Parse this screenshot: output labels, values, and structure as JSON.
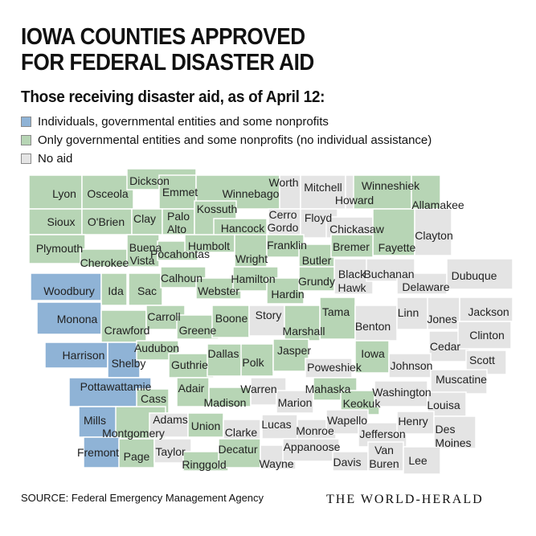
{
  "title_lines": [
    "IOWA COUNTIES APPROVED",
    "FOR FEDERAL DISASTER AID"
  ],
  "subtitle": "Those receiving disaster aid, as of April 12:",
  "legend": [
    {
      "label": "Individuals, governmental entities and some nonprofits",
      "color": "#8fb3d6"
    },
    {
      "label": "Only governmental entities and some nonprofits (no individual assistance)",
      "color": "#b7d5b5"
    },
    {
      "label": "No aid",
      "color": "#e4e4e4"
    }
  ],
  "source": "SOURCE: Federal Emergency Management Agency",
  "logo": "THE WORLD-HERALD",
  "colors": {
    "individual": "#8fb3d6",
    "government": "#b7d5b5",
    "none": "#e4e4e4",
    "border": "#ffffff"
  },
  "counties": [
    {
      "name": "Lyon",
      "status": "government"
    },
    {
      "name": "Osceola",
      "status": "government"
    },
    {
      "name": "Dickson",
      "status": "government"
    },
    {
      "name": "Emmet",
      "status": "government"
    },
    {
      "name": "Winnebago",
      "status": "government"
    },
    {
      "name": "Worth",
      "status": "none"
    },
    {
      "name": "Mitchell",
      "status": "none"
    },
    {
      "name": "Howard",
      "status": "none"
    },
    {
      "name": "Winneshiek",
      "status": "government"
    },
    {
      "name": "Allamakee",
      "status": "government"
    },
    {
      "name": "Sioux",
      "status": "government"
    },
    {
      "name": "O'Brien",
      "status": "government"
    },
    {
      "name": "Clay",
      "status": "government"
    },
    {
      "name": "Palo Alto",
      "status": "government"
    },
    {
      "name": "Kossuth",
      "status": "government"
    },
    {
      "name": "Hancock",
      "status": "government"
    },
    {
      "name": "Cerro Gordo",
      "status": "none"
    },
    {
      "name": "Floyd",
      "status": "none"
    },
    {
      "name": "Chickasaw",
      "status": "none"
    },
    {
      "name": "Fayette",
      "status": "government"
    },
    {
      "name": "Clayton",
      "status": "none"
    },
    {
      "name": "Plymouth",
      "status": "government"
    },
    {
      "name": "Cherokee",
      "status": "government"
    },
    {
      "name": "Buena Vista",
      "status": "government"
    },
    {
      "name": "Pocahontas",
      "status": "government"
    },
    {
      "name": "Humbolt",
      "status": "government"
    },
    {
      "name": "Wright",
      "status": "government"
    },
    {
      "name": "Franklin",
      "status": "government"
    },
    {
      "name": "Butler",
      "status": "government"
    },
    {
      "name": "Bremer",
      "status": "government"
    },
    {
      "name": "Black Hawk",
      "status": "none"
    },
    {
      "name": "Buchanan",
      "status": "none"
    },
    {
      "name": "Delaware",
      "status": "none"
    },
    {
      "name": "Dubuque",
      "status": "none"
    },
    {
      "name": "Woodbury",
      "status": "individual"
    },
    {
      "name": "Ida",
      "status": "government"
    },
    {
      "name": "Sac",
      "status": "government"
    },
    {
      "name": "Calhoun",
      "status": "government"
    },
    {
      "name": "Webster",
      "status": "government"
    },
    {
      "name": "Hamilton",
      "status": "government"
    },
    {
      "name": "Hardin",
      "status": "government"
    },
    {
      "name": "Grundy",
      "status": "government"
    },
    {
      "name": "Tama",
      "status": "government"
    },
    {
      "name": "Benton",
      "status": "none"
    },
    {
      "name": "Linn",
      "status": "none"
    },
    {
      "name": "Jones",
      "status": "none"
    },
    {
      "name": "Jackson",
      "status": "none"
    },
    {
      "name": "Monona",
      "status": "individual"
    },
    {
      "name": "Crawford",
      "status": "government"
    },
    {
      "name": "Carroll",
      "status": "government"
    },
    {
      "name": "Greene",
      "status": "government"
    },
    {
      "name": "Boone",
      "status": "government"
    },
    {
      "name": "Story",
      "status": "none"
    },
    {
      "name": "Marshall",
      "status": "government"
    },
    {
      "name": "Cedar",
      "status": "none"
    },
    {
      "name": "Clinton",
      "status": "none"
    },
    {
      "name": "Harrison",
      "status": "individual"
    },
    {
      "name": "Shelby",
      "status": "individual"
    },
    {
      "name": "Audubon",
      "status": "government"
    },
    {
      "name": "Guthrie",
      "status": "government"
    },
    {
      "name": "Dallas",
      "status": "government"
    },
    {
      "name": "Polk",
      "status": "government"
    },
    {
      "name": "Jasper",
      "status": "government"
    },
    {
      "name": "Poweshiek",
      "status": "none"
    },
    {
      "name": "Iowa",
      "status": "government"
    },
    {
      "name": "Johnson",
      "status": "none"
    },
    {
      "name": "Scott",
      "status": "none"
    },
    {
      "name": "Muscatine",
      "status": "none"
    },
    {
      "name": "Pottawattamie",
      "status": "individual"
    },
    {
      "name": "Cass",
      "status": "government"
    },
    {
      "name": "Adair",
      "status": "government"
    },
    {
      "name": "Madison",
      "status": "government"
    },
    {
      "name": "Warren",
      "status": "none"
    },
    {
      "name": "Marion",
      "status": "none"
    },
    {
      "name": "Mahaska",
      "status": "government"
    },
    {
      "name": "Keokuk",
      "status": "government"
    },
    {
      "name": "Washington",
      "status": "none"
    },
    {
      "name": "Louisa",
      "status": "none"
    },
    {
      "name": "Mills",
      "status": "individual"
    },
    {
      "name": "Montgomery",
      "status": "government"
    },
    {
      "name": "Adams",
      "status": "none"
    },
    {
      "name": "Union",
      "status": "government"
    },
    {
      "name": "Clarke",
      "status": "none"
    },
    {
      "name": "Lucas",
      "status": "none"
    },
    {
      "name": "Monroe",
      "status": "none"
    },
    {
      "name": "Wapello",
      "status": "none"
    },
    {
      "name": "Jefferson",
      "status": "none"
    },
    {
      "name": "Henry",
      "status": "none"
    },
    {
      "name": "Des Moines",
      "status": "none"
    },
    {
      "name": "Fremont",
      "status": "individual"
    },
    {
      "name": "Page",
      "status": "government"
    },
    {
      "name": "Taylor",
      "status": "none"
    },
    {
      "name": "Ringgold",
      "status": "government"
    },
    {
      "name": "Decatur",
      "status": "government"
    },
    {
      "name": "Wayne",
      "status": "none"
    },
    {
      "name": "Appanoose",
      "status": "none"
    },
    {
      "name": "Davis",
      "status": "none"
    },
    {
      "name": "Van Buren",
      "status": "none"
    },
    {
      "name": "Lee",
      "status": "none"
    }
  ]
}
